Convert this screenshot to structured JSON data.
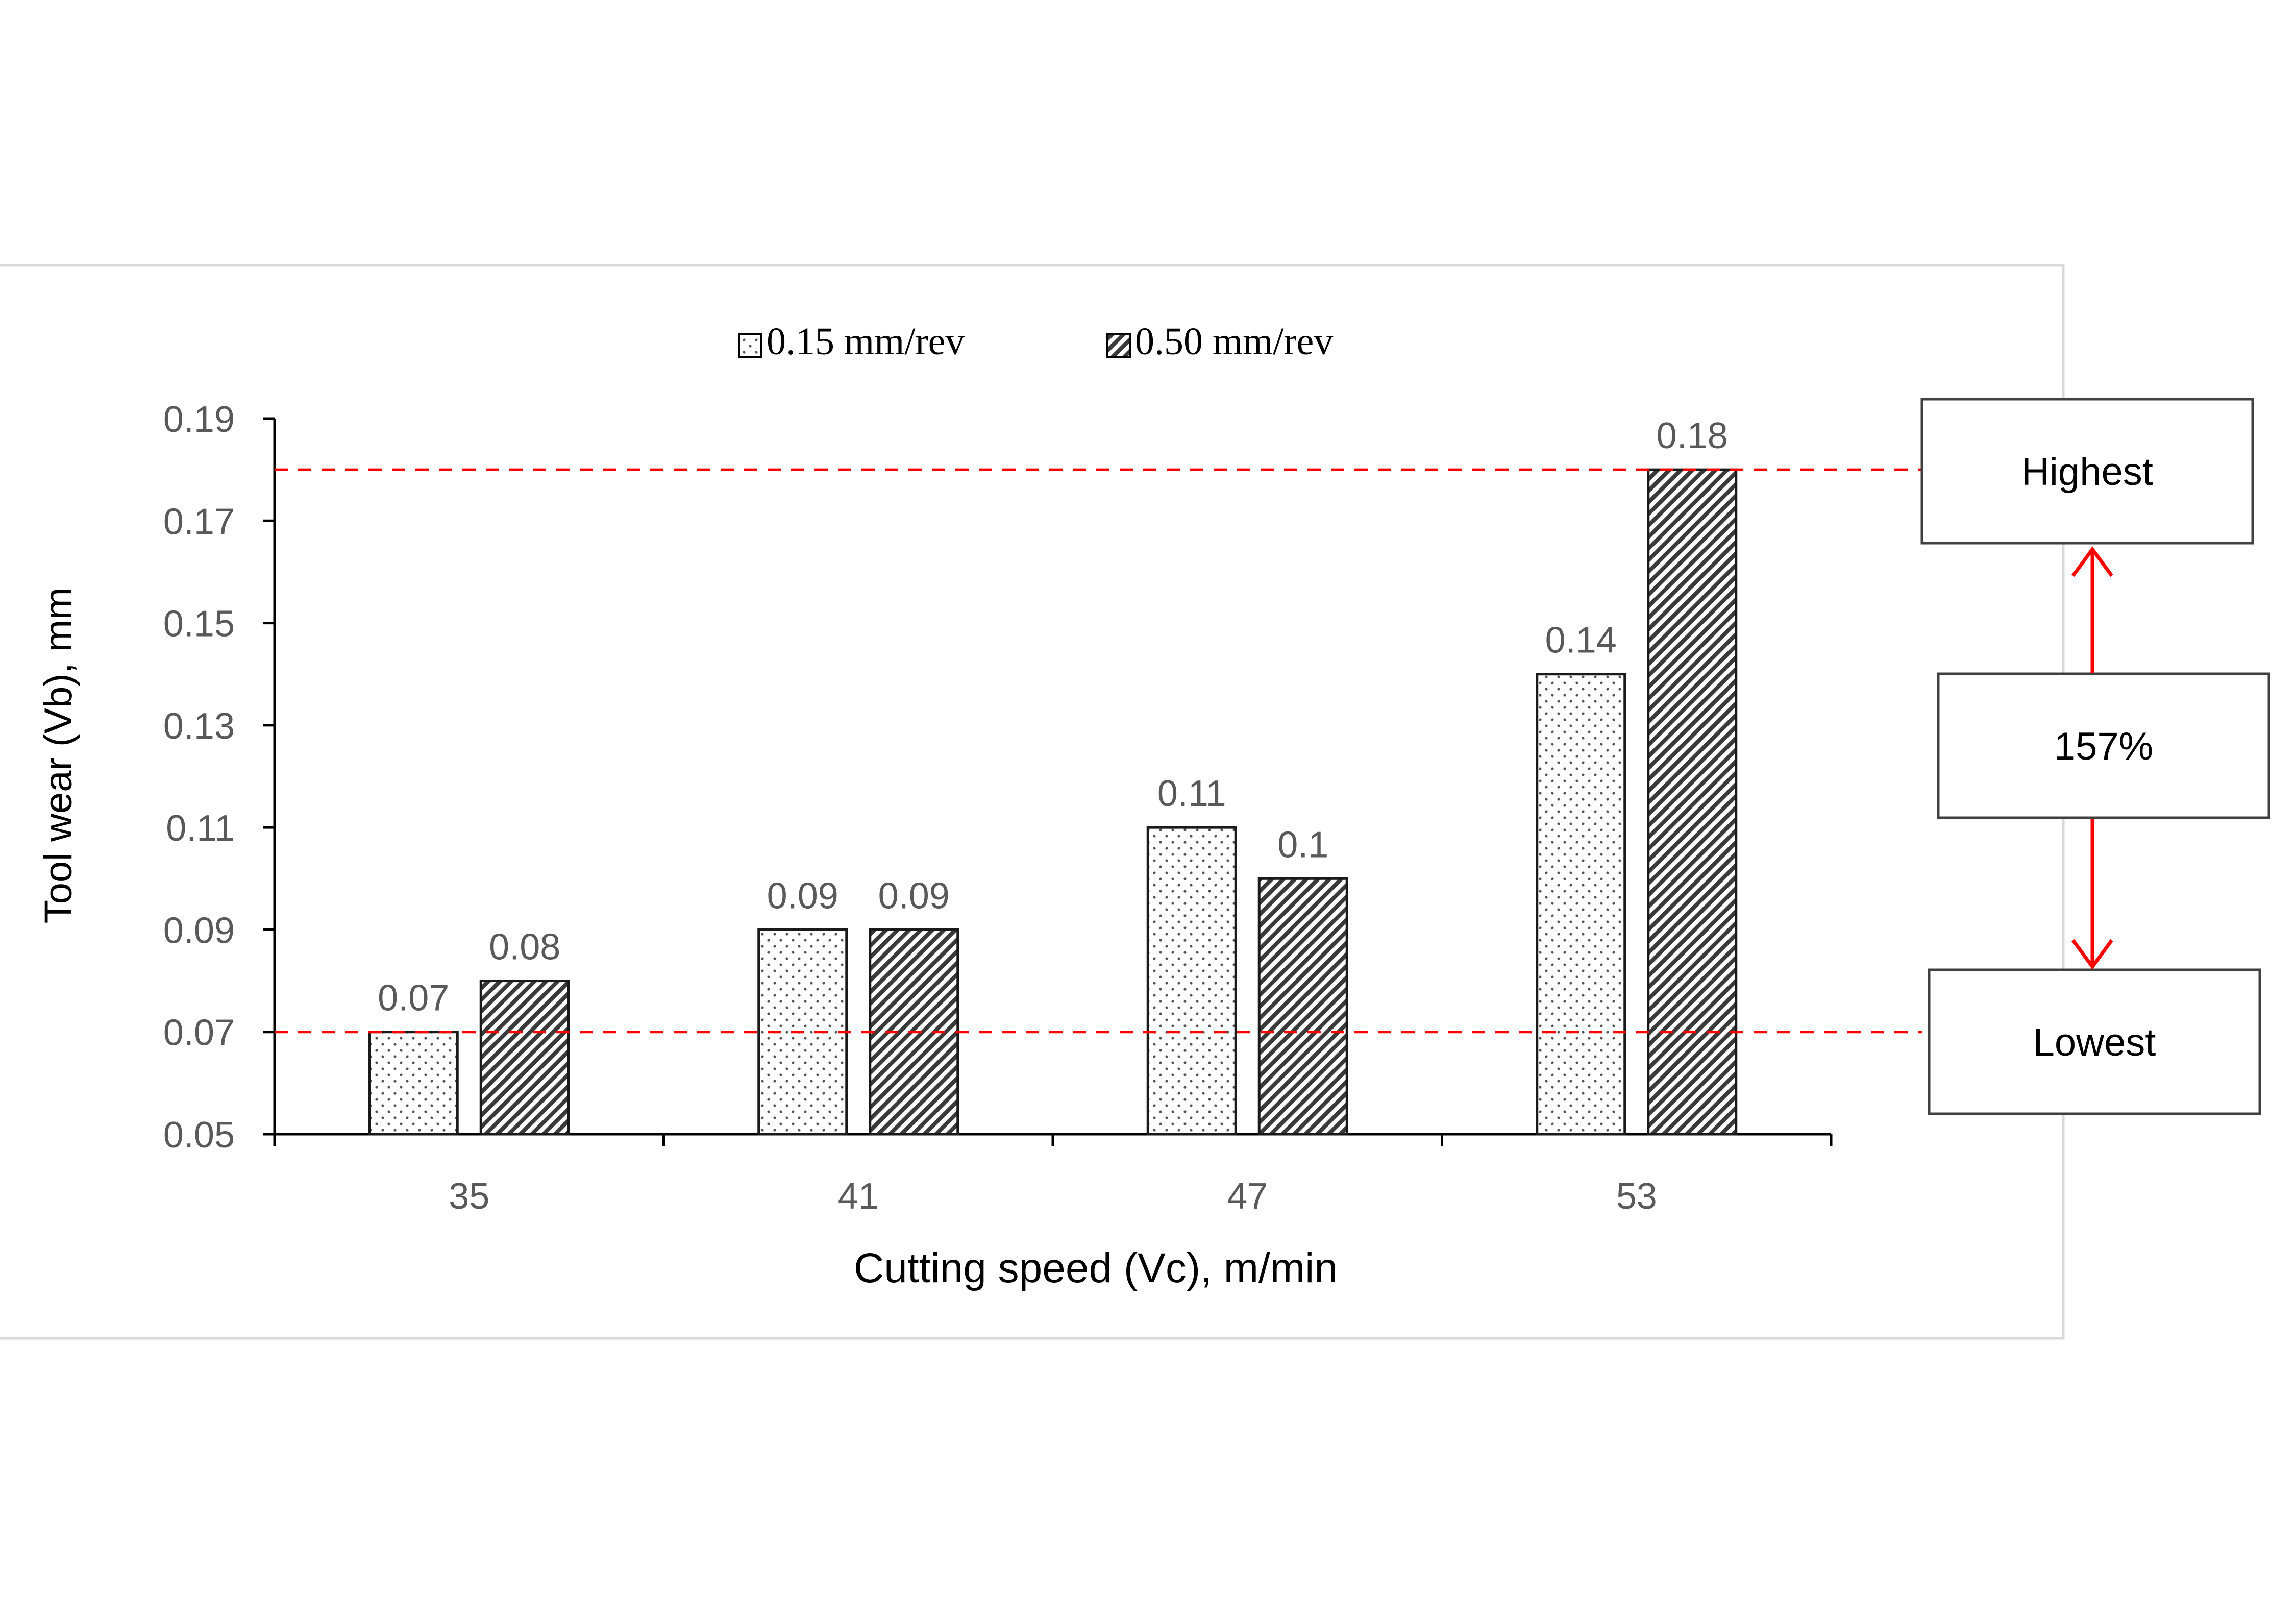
{
  "chart_data": {
    "type": "bar",
    "title": "",
    "xlabel": "Cutting speed (Vc), m/min",
    "ylabel": "Tool wear (Vb), mm",
    "categories": [
      "35",
      "41",
      "47",
      "53"
    ],
    "series": [
      {
        "name": "0.15 mm/rev",
        "pattern": "dots",
        "values": [
          0.07,
          0.09,
          0.11,
          0.14
        ],
        "labels": [
          "0.07",
          "0.09",
          "0.11",
          "0.14"
        ]
      },
      {
        "name": "0.50 mm/rev",
        "pattern": "hatch",
        "values": [
          0.08,
          0.09,
          0.1,
          0.18
        ],
        "labels": [
          "0.08",
          "0.09",
          "0.1",
          "0.18"
        ]
      }
    ],
    "ylim": [
      0.05,
      0.19
    ],
    "yticks": [
      0.05,
      0.07,
      0.09,
      0.11,
      0.13,
      0.15,
      0.17,
      0.19
    ],
    "ytick_labels": [
      "0.05",
      "0.07",
      "0.09",
      "0.11",
      "0.13",
      "0.15",
      "0.17",
      "0.19"
    ],
    "legend_position": "top-center",
    "grid": false,
    "reference_lines": [
      {
        "name": "highest",
        "value": 0.18,
        "color": "#ff0000",
        "style": "dashed"
      },
      {
        "name": "lowest",
        "value": 0.07,
        "color": "#ff0000",
        "style": "dashed"
      }
    ],
    "annotations": {
      "highest_label": "Highest",
      "lowest_label": "Lowest",
      "difference_label": "157%"
    }
  }
}
